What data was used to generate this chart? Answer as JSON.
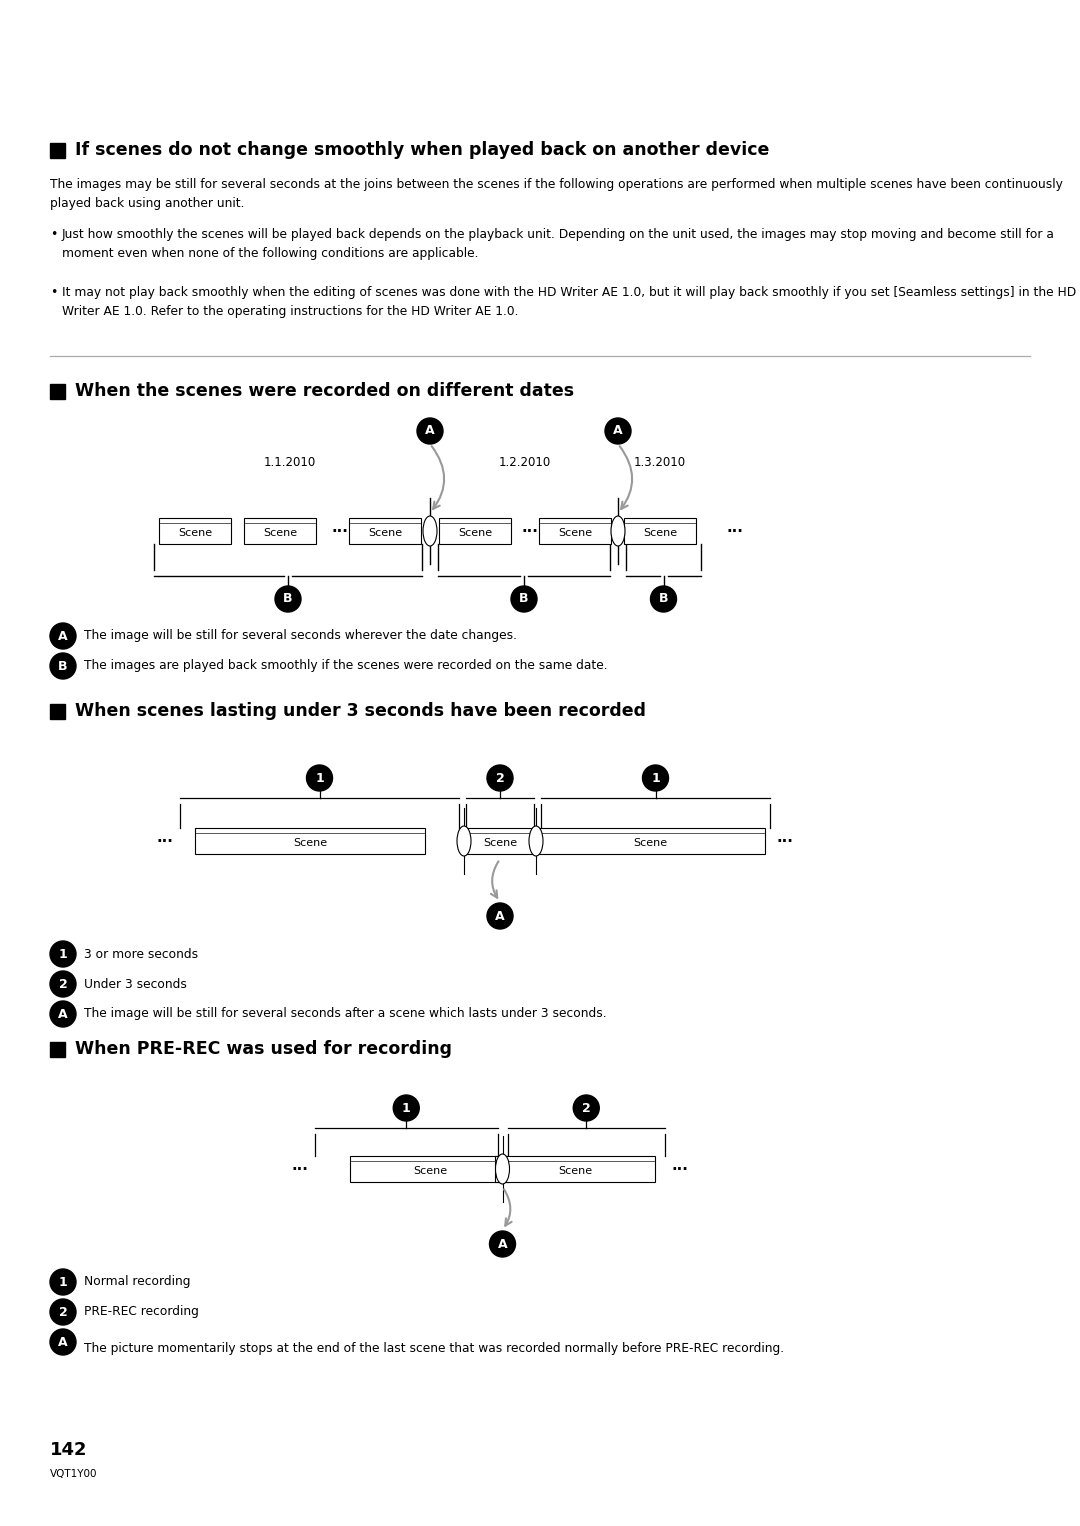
{
  "bg_color": "#ffffff",
  "text_color": "#000000",
  "section1_title": "If scenes do not change smoothly when played back on another device",
  "section1_para1": "The images may be still for several seconds at the joins between the scenes if the following operations are performed when multiple scenes have been continuously played back using another unit.",
  "section1_bullet1": "Just how smoothly the scenes will be played back depends on the playback unit. Depending on the unit used, the images may stop moving and become still for a moment even when none of the following conditions are applicable.",
  "section1_bullet2": "It may not play back smoothly when the editing of scenes was done with the HD Writer AE 1.0, but it will play back smoothly if you set [Seamless settings] in the HD Writer AE 1.0. Refer to the operating instructions for the HD Writer AE 1.0.",
  "section2_title": "When the scenes were recorded on different dates",
  "section2_legendA": "The image will be still for several seconds wherever the date changes.",
  "section2_legendB": "The images are played back smoothly if the scenes were recorded on the same date.",
  "section3_title": "When scenes lasting under 3 seconds have been recorded",
  "section3_legend1": "3 or more seconds",
  "section3_legend2": "Under 3 seconds",
  "section3_legendA": "The image will be still for several seconds after a scene which lasts under 3 seconds.",
  "section4_title": "When PRE-REC was used for recording",
  "section4_legend1": "Normal recording",
  "section4_legend2": "PRE-REC recording",
  "section4_legendA": "The picture momentarily stops at the end of the last scene that was recorded normally before PRE-REC recording.",
  "page_number": "142",
  "page_code": "VQT1Y00"
}
